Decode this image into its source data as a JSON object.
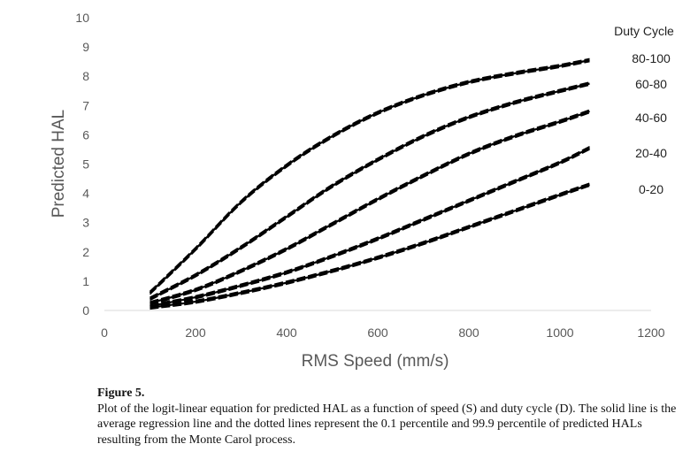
{
  "chart_data": {
    "type": "line",
    "title": "",
    "xlabel": "RMS Speed (mm/s)",
    "ylabel": "Predicted HAL",
    "xlim": [
      0,
      1200
    ],
    "ylim": [
      0,
      10
    ],
    "x_ticks": [
      "0",
      "200",
      "400",
      "600",
      "800",
      "1000",
      "1200"
    ],
    "y_ticks": [
      "0",
      "1",
      "2",
      "3",
      "4",
      "5",
      "6",
      "7",
      "8",
      "9",
      "10"
    ],
    "grid": false,
    "legend_title": "Duty Cycle",
    "legend_position": "right",
    "x": [
      100,
      200,
      300,
      400,
      500,
      600,
      700,
      800,
      900,
      1000,
      1065
    ],
    "series": [
      {
        "name": "80-100",
        "values": [
          0.6,
          2.1,
          3.7,
          4.95,
          5.95,
          6.75,
          7.35,
          7.8,
          8.1,
          8.35,
          8.55
        ]
      },
      {
        "name": "60-80",
        "values": [
          0.4,
          1.2,
          2.15,
          3.2,
          4.25,
          5.15,
          5.95,
          6.6,
          7.1,
          7.5,
          7.75
        ]
      },
      {
        "name": "40-60",
        "values": [
          0.25,
          0.7,
          1.35,
          2.1,
          2.95,
          3.8,
          4.6,
          5.35,
          5.95,
          6.45,
          6.8
        ]
      },
      {
        "name": "20-40",
        "values": [
          0.15,
          0.45,
          0.85,
          1.3,
          1.85,
          2.45,
          3.1,
          3.75,
          4.4,
          5.05,
          5.55
        ]
      },
      {
        "name": "0-20",
        "values": [
          0.1,
          0.3,
          0.6,
          0.95,
          1.35,
          1.8,
          2.3,
          2.85,
          3.4,
          3.95,
          4.3
        ]
      }
    ]
  },
  "caption": {
    "title": "Figure 5.",
    "text": "Plot of the logit-linear equation for predicted HAL as a function of speed (S) and duty cycle (D). The solid line is the average regression line and the dotted lines represent the 0.1 percentile and 99.9 percentile of predicted HALs resulting from the Monte Carol process."
  }
}
